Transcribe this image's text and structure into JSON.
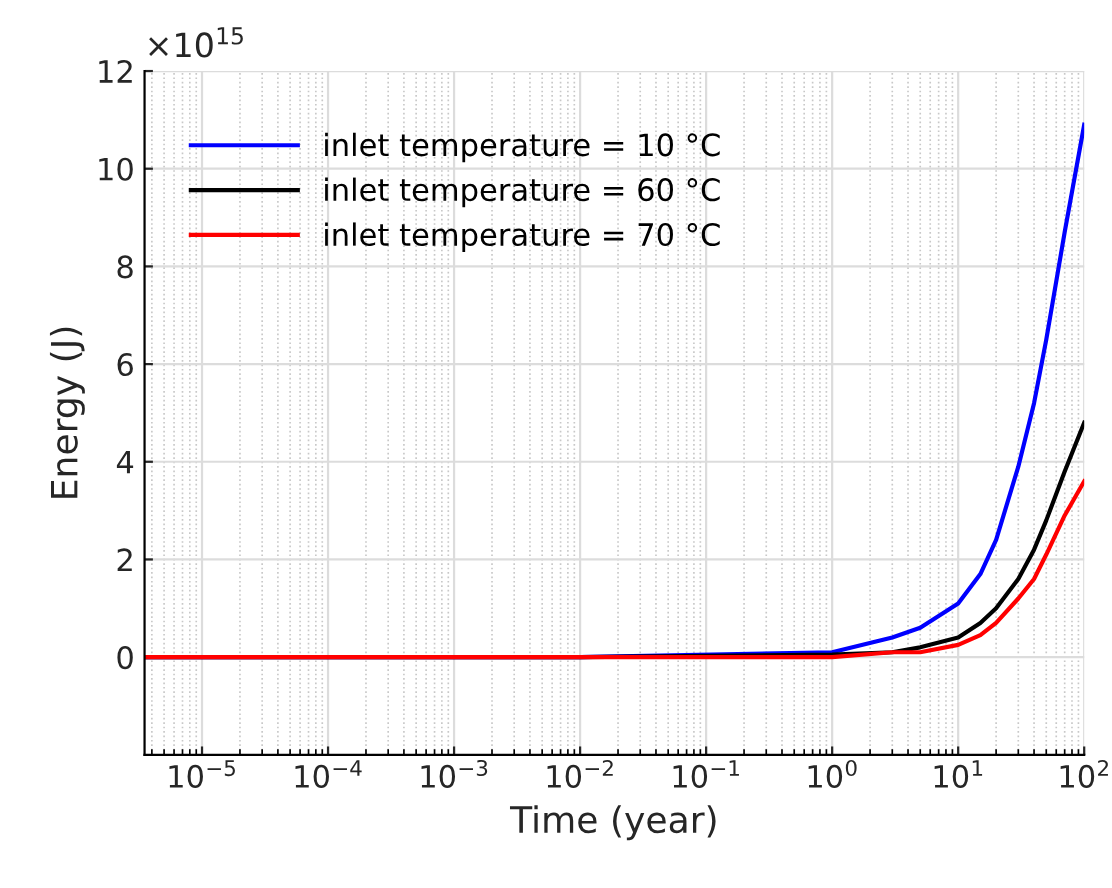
{
  "chart_data": {
    "type": "line",
    "xlabel": "Time (year)",
    "ylabel": "Energy (J)",
    "annotations": [
      "×10$^{15}$"
    ],
    "log": "x",
    "grid": true,
    "legend": "top left",
    "line_style": "solid",
    "marker": "none",
    "xlim": [
      3.5e-06,
      100
    ],
    "ylim": [
      -2,
      12
    ],
    "xticks": [
      {
        "value": 1e-05,
        "label": "10$^{−5}$"
      },
      {
        "value": 0.0001,
        "label": "10$^{−4}$"
      },
      {
        "value": 0.001,
        "label": "10$^{−3}$"
      },
      {
        "value": 0.01,
        "label": "10$^{−2}$"
      },
      {
        "value": 0.1,
        "label": "10$^{−1}$"
      },
      {
        "value": 1,
        "label": "10$^{0}$"
      },
      {
        "value": 10,
        "label": "10$^{1}$"
      },
      {
        "value": 100,
        "label": "10$^{2}$"
      }
    ],
    "yticks": [
      0,
      2,
      4,
      6,
      8,
      10,
      12
    ],
    "x": [
      3.5e-06,
      0.01,
      1,
      3,
      5,
      10,
      15,
      20,
      30,
      40,
      50,
      70,
      100
    ],
    "series": [
      {
        "name": "inlet temperature = 10 °C",
        "color": "#0000ff",
        "values": [
          0,
          0,
          0.1,
          0.4,
          0.6,
          1.1,
          1.7,
          2.4,
          3.9,
          5.2,
          6.5,
          8.7,
          10.9
        ]
      },
      {
        "name": "inlet temperature = 60 °C",
        "color": "#000000",
        "values": [
          0,
          0,
          0.05,
          0.1,
          0.2,
          0.4,
          0.7,
          1.0,
          1.6,
          2.2,
          2.8,
          3.8,
          4.8
        ]
      },
      {
        "name": "inlet temperature = 70 °C",
        "color": "#ff0000",
        "values": [
          0,
          0,
          0,
          0.1,
          0.1,
          0.25,
          0.45,
          0.7,
          1.2,
          1.6,
          2.1,
          2.9,
          3.6
        ]
      }
    ]
  }
}
